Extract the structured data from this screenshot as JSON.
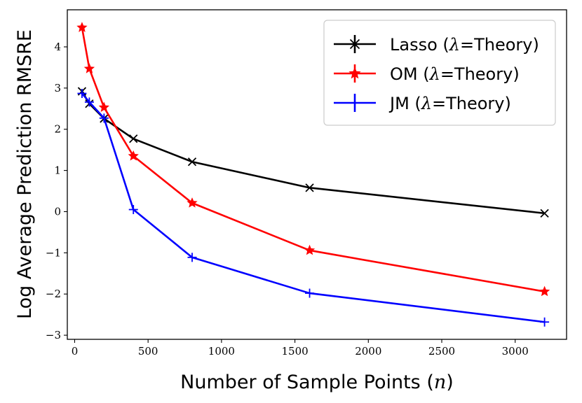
{
  "chart_data": {
    "type": "line",
    "xlabel": "Number of Sample Points (n)",
    "ylabel": "Log Average Prediction RMSRE",
    "xlim": [
      -50,
      3350
    ],
    "ylim": [
      -3.1,
      4.9
    ],
    "xticks": [
      0,
      500,
      1000,
      1500,
      2000,
      2500,
      3000
    ],
    "yticks": [
      -3,
      -2,
      -1,
      0,
      1,
      2,
      3,
      4
    ],
    "xtick_labels": [
      "0",
      "500",
      "1000",
      "1500",
      "2000",
      "2500",
      "3000"
    ],
    "ytick_labels": [
      "−3",
      "−2",
      "−1",
      "0",
      "1",
      "2",
      "3",
      "4"
    ],
    "grid": false,
    "legend_position": "top-right",
    "x": [
      50,
      100,
      200,
      400,
      800,
      1600,
      3200
    ],
    "series": [
      {
        "name": "Lasso (λ=Theory)",
        "color": "#000000",
        "marker": "x",
        "values": [
          2.92,
          2.62,
          2.26,
          1.77,
          1.21,
          0.58,
          -0.04
        ]
      },
      {
        "name": "OM (λ=Theory)",
        "color": "#ff0000",
        "marker": "star",
        "values": [
          4.47,
          3.47,
          2.53,
          1.35,
          0.21,
          -0.94,
          -1.94
        ]
      },
      {
        "name": "JM (λ=Theory)",
        "color": "#0000ff",
        "marker": "plus",
        "values": [
          2.87,
          2.66,
          2.27,
          0.05,
          -1.11,
          -1.98,
          -2.68
        ]
      }
    ]
  }
}
